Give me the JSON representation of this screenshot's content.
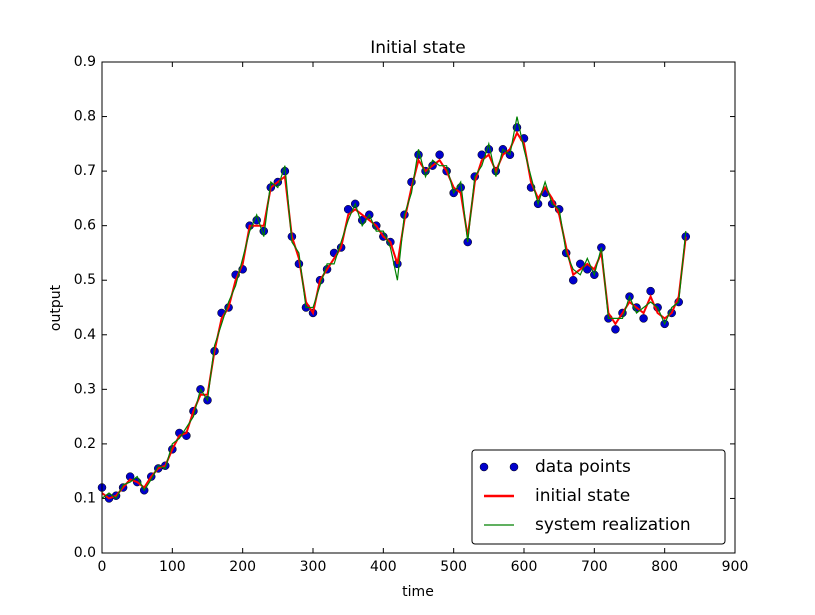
{
  "chart_data": {
    "type": "line",
    "title": "Initial state",
    "x_label": "time",
    "y_label": "output",
    "x": [
      0,
      10,
      20,
      30,
      40,
      50,
      60,
      70,
      80,
      90,
      100,
      110,
      120,
      130,
      140,
      150,
      160,
      170,
      180,
      190,
      200,
      210,
      220,
      230,
      240,
      250,
      260,
      270,
      280,
      290,
      300,
      310,
      320,
      330,
      340,
      350,
      360,
      370,
      380,
      390,
      400,
      410,
      420,
      430,
      440,
      450,
      460,
      470,
      480,
      490,
      500,
      510,
      520,
      530,
      540,
      550,
      560,
      570,
      580,
      590,
      600,
      610,
      620,
      630,
      640,
      650,
      660,
      670,
      680,
      690,
      700,
      710,
      720,
      730,
      740,
      750,
      760,
      770,
      780,
      790,
      800,
      810,
      820,
      830
    ],
    "series": [
      {
        "name": "data points",
        "color": "#0000cc",
        "style": "points",
        "values": [
          0.12,
          0.1,
          0.105,
          0.12,
          0.14,
          0.13,
          0.115,
          0.14,
          0.155,
          0.16,
          0.19,
          0.22,
          0.215,
          0.26,
          0.3,
          0.28,
          0.37,
          0.44,
          0.45,
          0.51,
          0.52,
          0.6,
          0.61,
          0.59,
          0.67,
          0.68,
          0.7,
          0.58,
          0.53,
          0.45,
          0.44,
          0.5,
          0.52,
          0.55,
          0.56,
          0.63,
          0.64,
          0.61,
          0.62,
          0.6,
          0.58,
          0.57,
          0.53,
          0.62,
          0.68,
          0.73,
          0.7,
          0.71,
          0.73,
          0.7,
          0.66,
          0.67,
          0.57,
          0.69,
          0.73,
          0.74,
          0.7,
          0.74,
          0.73,
          0.78,
          0.76,
          0.67,
          0.64,
          0.66,
          0.64,
          0.63,
          0.55,
          0.5,
          0.53,
          0.52,
          0.51,
          0.56,
          0.43,
          0.41,
          0.44,
          0.47,
          0.45,
          0.43,
          0.48,
          0.45,
          0.42,
          0.44,
          0.46,
          0.58
        ]
      },
      {
        "name": "initial state",
        "color": "#ff0000",
        "style": "thick",
        "values": [
          0.11,
          0.1,
          0.105,
          0.12,
          0.135,
          0.13,
          0.12,
          0.14,
          0.155,
          0.16,
          0.19,
          0.215,
          0.22,
          0.26,
          0.29,
          0.29,
          0.37,
          0.43,
          0.45,
          0.5,
          0.53,
          0.6,
          0.6,
          0.6,
          0.67,
          0.68,
          0.69,
          0.58,
          0.54,
          0.46,
          0.44,
          0.5,
          0.52,
          0.54,
          0.56,
          0.62,
          0.63,
          0.62,
          0.61,
          0.6,
          0.58,
          0.57,
          0.53,
          0.61,
          0.67,
          0.72,
          0.7,
          0.71,
          0.72,
          0.7,
          0.67,
          0.66,
          0.58,
          0.68,
          0.72,
          0.73,
          0.7,
          0.73,
          0.74,
          0.77,
          0.75,
          0.68,
          0.65,
          0.67,
          0.65,
          0.62,
          0.56,
          0.51,
          0.52,
          0.53,
          0.52,
          0.55,
          0.44,
          0.42,
          0.44,
          0.46,
          0.45,
          0.44,
          0.47,
          0.44,
          0.43,
          0.44,
          0.47,
          0.58
        ]
      },
      {
        "name": "system realization",
        "color": "#008000",
        "style": "thin",
        "values": [
          0.1,
          0.11,
          0.1,
          0.125,
          0.13,
          0.14,
          0.115,
          0.135,
          0.16,
          0.155,
          0.2,
          0.21,
          0.23,
          0.25,
          0.3,
          0.28,
          0.38,
          0.42,
          0.46,
          0.49,
          0.54,
          0.59,
          0.62,
          0.58,
          0.68,
          0.67,
          0.71,
          0.57,
          0.55,
          0.45,
          0.45,
          0.49,
          0.53,
          0.53,
          0.57,
          0.61,
          0.64,
          0.6,
          0.62,
          0.59,
          0.59,
          0.56,
          0.5,
          0.62,
          0.66,
          0.74,
          0.69,
          0.72,
          0.71,
          0.71,
          0.66,
          0.68,
          0.57,
          0.69,
          0.71,
          0.75,
          0.69,
          0.74,
          0.73,
          0.8,
          0.74,
          0.69,
          0.64,
          0.68,
          0.64,
          0.63,
          0.55,
          0.52,
          0.51,
          0.54,
          0.51,
          0.56,
          0.43,
          0.43,
          0.43,
          0.47,
          0.44,
          0.45,
          0.46,
          0.45,
          0.42,
          0.45,
          0.46,
          0.59
        ]
      }
    ],
    "xlim": [
      0,
      900
    ],
    "ylim": [
      0,
      0.9
    ],
    "xticks": [
      0,
      100,
      200,
      300,
      400,
      500,
      600,
      700,
      800,
      900
    ],
    "yticks": [
      {
        "value": 0,
        "label": "0.0"
      },
      0.1,
      0.2,
      0.3,
      0.4,
      0.5,
      0.6,
      0.7,
      0.8,
      0.9
    ],
    "legend": "lower right"
  }
}
